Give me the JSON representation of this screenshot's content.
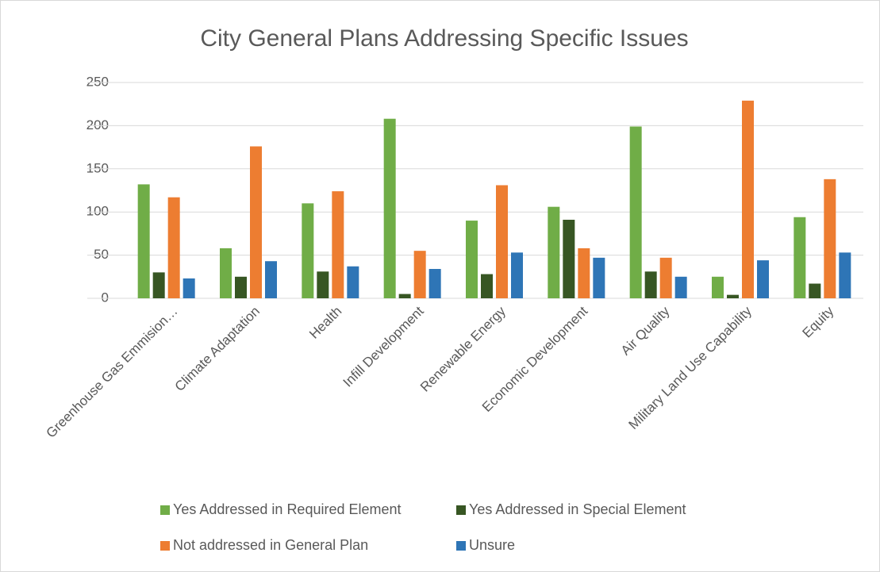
{
  "chart_data": {
    "type": "bar",
    "title": "City General Plans Addressing Specific Issues",
    "categories": [
      "Greenhouse Gas Emmision…",
      "Climate Adaptation",
      "Health",
      "Infill Development",
      "Renewable Energy",
      "Economic Development",
      "Air Quality",
      "Military Land Use Capability",
      "Equity"
    ],
    "series": [
      {
        "name": "Yes Addressed in Required Element",
        "color": "#70ad47",
        "values": [
          132,
          58,
          110,
          208,
          90,
          106,
          199,
          25,
          94
        ]
      },
      {
        "name": "Yes Addressed in Special Element",
        "color": "#375623",
        "values": [
          30,
          25,
          31,
          5,
          28,
          91,
          31,
          4,
          17
        ]
      },
      {
        "name": "Not addressed in General Plan",
        "color": "#ed7d31",
        "values": [
          117,
          176,
          124,
          55,
          131,
          58,
          47,
          229,
          138
        ]
      },
      {
        "name": "Unsure",
        "color": "#2e75b6",
        "values": [
          23,
          43,
          37,
          34,
          53,
          47,
          25,
          44,
          53
        ]
      }
    ],
    "ylim": [
      0,
      250
    ],
    "yticks": [
      0,
      50,
      100,
      150,
      200,
      250
    ],
    "grid": true,
    "legend": "bottom"
  }
}
